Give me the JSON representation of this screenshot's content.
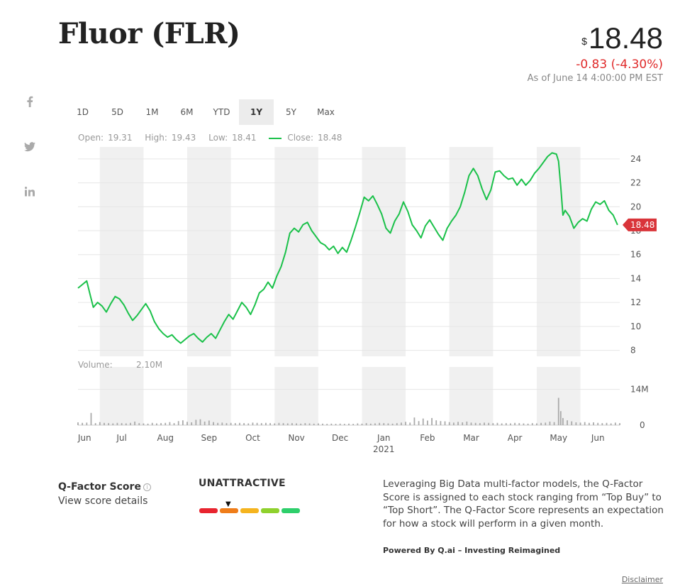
{
  "header": {
    "title": "Fluor (FLR)",
    "currency_symbol": "$",
    "price": "18.48",
    "change": "-0.83 (-4.30%)",
    "as_of": "As of June 14 4:00:00 PM EST"
  },
  "social": [
    {
      "name": "facebook-icon",
      "glyph": "f"
    },
    {
      "name": "twitter-icon",
      "glyph": "🐦"
    },
    {
      "name": "linkedin-icon",
      "glyph": "in"
    }
  ],
  "range_buttons": [
    "1D",
    "5D",
    "1M",
    "6M",
    "YTD",
    "1Y",
    "5Y",
    "Max"
  ],
  "active_range": "1Y",
  "ohlc": {
    "open_label": "Open:",
    "open": "19.31",
    "high_label": "High:",
    "high": "19.43",
    "low_label": "Low:",
    "low": "18.41",
    "close_label": "Close:",
    "close": "18.48"
  },
  "volume_label": "Volume:",
  "volume_value": "2.10M",
  "current_price_badge": "18.48",
  "colors": {
    "line": "#1bc14a",
    "badge": "#d9343a",
    "band": "#f0f0f0",
    "negative": "#e02a2a"
  },
  "chart_data": {
    "type": "line",
    "x_tick_labels": [
      "Jun",
      "Jul",
      "Aug",
      "Sep",
      "Oct",
      "Nov",
      "Dec",
      "Jan",
      "Feb",
      "Mar",
      "Apr",
      "May",
      "Jun"
    ],
    "x_sub_label": "2021",
    "y_ticks": [
      8,
      10,
      12,
      14,
      16,
      18,
      20,
      22,
      24
    ],
    "ylim": [
      7.5,
      25
    ],
    "series": [
      {
        "values": [
          [
            0.0,
            13.2
          ],
          [
            0.1,
            13.5
          ],
          [
            0.2,
            13.8
          ],
          [
            0.28,
            12.6
          ],
          [
            0.35,
            11.6
          ],
          [
            0.45,
            12.0
          ],
          [
            0.55,
            11.7
          ],
          [
            0.65,
            11.2
          ],
          [
            0.75,
            11.9
          ],
          [
            0.85,
            12.5
          ],
          [
            0.95,
            12.3
          ],
          [
            1.05,
            11.8
          ],
          [
            1.15,
            11.1
          ],
          [
            1.25,
            10.5
          ],
          [
            1.35,
            10.9
          ],
          [
            1.45,
            11.4
          ],
          [
            1.55,
            11.9
          ],
          [
            1.65,
            11.3
          ],
          [
            1.75,
            10.4
          ],
          [
            1.85,
            9.8
          ],
          [
            1.95,
            9.4
          ],
          [
            2.05,
            9.1
          ],
          [
            2.15,
            9.3
          ],
          [
            2.25,
            8.9
          ],
          [
            2.35,
            8.6
          ],
          [
            2.45,
            8.9
          ],
          [
            2.55,
            9.2
          ],
          [
            2.65,
            9.4
          ],
          [
            2.75,
            9.0
          ],
          [
            2.85,
            8.7
          ],
          [
            2.95,
            9.1
          ],
          [
            3.05,
            9.4
          ],
          [
            3.15,
            9.0
          ],
          [
            3.25,
            9.7
          ],
          [
            3.35,
            10.4
          ],
          [
            3.45,
            11.0
          ],
          [
            3.55,
            10.6
          ],
          [
            3.65,
            11.3
          ],
          [
            3.75,
            12.0
          ],
          [
            3.85,
            11.6
          ],
          [
            3.95,
            11.0
          ],
          [
            4.05,
            11.8
          ],
          [
            4.15,
            12.8
          ],
          [
            4.25,
            13.1
          ],
          [
            4.35,
            13.7
          ],
          [
            4.45,
            13.2
          ],
          [
            4.55,
            14.2
          ],
          [
            4.65,
            15.0
          ],
          [
            4.75,
            16.2
          ],
          [
            4.85,
            17.8
          ],
          [
            4.95,
            18.2
          ],
          [
            5.05,
            17.9
          ],
          [
            5.15,
            18.5
          ],
          [
            5.25,
            18.7
          ],
          [
            5.35,
            18.0
          ],
          [
            5.45,
            17.5
          ],
          [
            5.55,
            17.0
          ],
          [
            5.65,
            16.8
          ],
          [
            5.75,
            16.4
          ],
          [
            5.85,
            16.7
          ],
          [
            5.95,
            16.1
          ],
          [
            6.05,
            16.6
          ],
          [
            6.15,
            16.2
          ],
          [
            6.25,
            17.2
          ],
          [
            6.35,
            18.3
          ],
          [
            6.45,
            19.5
          ],
          [
            6.55,
            20.8
          ],
          [
            6.65,
            20.5
          ],
          [
            6.75,
            20.9
          ],
          [
            6.85,
            20.2
          ],
          [
            6.95,
            19.4
          ],
          [
            7.05,
            18.2
          ],
          [
            7.15,
            17.8
          ],
          [
            7.25,
            18.8
          ],
          [
            7.35,
            19.4
          ],
          [
            7.45,
            20.4
          ],
          [
            7.55,
            19.6
          ],
          [
            7.65,
            18.5
          ],
          [
            7.75,
            18.0
          ],
          [
            7.85,
            17.4
          ],
          [
            7.95,
            18.4
          ],
          [
            8.05,
            18.9
          ],
          [
            8.15,
            18.3
          ],
          [
            8.25,
            17.7
          ],
          [
            8.35,
            17.2
          ],
          [
            8.45,
            18.2
          ],
          [
            8.55,
            18.8
          ],
          [
            8.65,
            19.3
          ],
          [
            8.75,
            20.0
          ],
          [
            8.85,
            21.2
          ],
          [
            8.95,
            22.6
          ],
          [
            9.05,
            23.2
          ],
          [
            9.15,
            22.6
          ],
          [
            9.25,
            21.5
          ],
          [
            9.35,
            20.6
          ],
          [
            9.45,
            21.4
          ],
          [
            9.55,
            22.9
          ],
          [
            9.65,
            23.0
          ],
          [
            9.75,
            22.6
          ],
          [
            9.85,
            22.3
          ],
          [
            9.95,
            22.4
          ],
          [
            10.05,
            21.8
          ],
          [
            10.15,
            22.3
          ],
          [
            10.25,
            21.8
          ],
          [
            10.35,
            22.2
          ],
          [
            10.45,
            22.8
          ],
          [
            10.55,
            23.2
          ],
          [
            10.65,
            23.7
          ],
          [
            10.75,
            24.2
          ],
          [
            10.85,
            24.5
          ],
          [
            10.95,
            24.4
          ],
          [
            11.0,
            23.8
          ],
          [
            11.05,
            21.7
          ],
          [
            11.1,
            19.3
          ],
          [
            11.15,
            19.7
          ],
          [
            11.25,
            19.2
          ],
          [
            11.35,
            18.2
          ],
          [
            11.45,
            18.7
          ],
          [
            11.55,
            19.0
          ],
          [
            11.65,
            18.8
          ],
          [
            11.75,
            19.8
          ],
          [
            11.85,
            20.4
          ],
          [
            11.95,
            20.2
          ],
          [
            12.05,
            20.5
          ],
          [
            12.15,
            19.7
          ],
          [
            12.25,
            19.3
          ],
          [
            12.35,
            18.48
          ]
        ]
      }
    ],
    "volume_ticks": [
      "14M",
      "0"
    ],
    "volume_ylim": [
      0,
      20
    ],
    "volume_values": [
      [
        0.0,
        1.1
      ],
      [
        0.1,
        0.9
      ],
      [
        0.2,
        1.0
      ],
      [
        0.3,
        4.8
      ],
      [
        0.4,
        0.8
      ],
      [
        0.5,
        1.2
      ],
      [
        0.6,
        0.9
      ],
      [
        0.7,
        0.8
      ],
      [
        0.8,
        0.7
      ],
      [
        0.9,
        0.9
      ],
      [
        1.0,
        0.8
      ],
      [
        1.1,
        0.7
      ],
      [
        1.2,
        0.9
      ],
      [
        1.3,
        1.4
      ],
      [
        1.4,
        0.8
      ],
      [
        1.5,
        0.7
      ],
      [
        1.6,
        0.6
      ],
      [
        1.7,
        0.9
      ],
      [
        1.8,
        0.7
      ],
      [
        1.9,
        0.8
      ],
      [
        2.0,
        0.9
      ],
      [
        2.1,
        1.2
      ],
      [
        2.2,
        0.8
      ],
      [
        2.3,
        1.6
      ],
      [
        2.4,
        1.9
      ],
      [
        2.5,
        1.3
      ],
      [
        2.6,
        1.1
      ],
      [
        2.7,
        2.1
      ],
      [
        2.8,
        2.3
      ],
      [
        2.9,
        1.4
      ],
      [
        3.0,
        1.8
      ],
      [
        3.1,
        1.2
      ],
      [
        3.2,
        0.9
      ],
      [
        3.3,
        1.0
      ],
      [
        3.4,
        0.8
      ],
      [
        3.5,
        0.9
      ],
      [
        3.6,
        0.8
      ],
      [
        3.7,
        0.9
      ],
      [
        3.8,
        0.8
      ],
      [
        3.9,
        0.7
      ],
      [
        4.0,
        1.0
      ],
      [
        4.1,
        0.9
      ],
      [
        4.2,
        0.8
      ],
      [
        4.3,
        0.9
      ],
      [
        4.4,
        0.8
      ],
      [
        4.5,
        0.7
      ],
      [
        4.6,
        0.9
      ],
      [
        4.7,
        0.8
      ],
      [
        4.8,
        0.7
      ],
      [
        4.9,
        0.8
      ],
      [
        5.0,
        0.7
      ],
      [
        5.1,
        0.6
      ],
      [
        5.2,
        0.8
      ],
      [
        5.3,
        0.7
      ],
      [
        5.4,
        0.6
      ],
      [
        5.5,
        0.7
      ],
      [
        5.6,
        0.6
      ],
      [
        5.7,
        0.5
      ],
      [
        5.8,
        0.6
      ],
      [
        5.9,
        0.5
      ],
      [
        6.0,
        0.6
      ],
      [
        6.1,
        0.5
      ],
      [
        6.2,
        0.6
      ],
      [
        6.3,
        0.5
      ],
      [
        6.4,
        0.7
      ],
      [
        6.5,
        0.6
      ],
      [
        6.6,
        0.8
      ],
      [
        6.7,
        0.6
      ],
      [
        6.8,
        0.7
      ],
      [
        6.9,
        0.9
      ],
      [
        7.0,
        0.8
      ],
      [
        7.1,
        0.7
      ],
      [
        7.2,
        0.6
      ],
      [
        7.3,
        0.8
      ],
      [
        7.4,
        1.0
      ],
      [
        7.5,
        1.3
      ],
      [
        7.6,
        1.0
      ],
      [
        7.7,
        3.0
      ],
      [
        7.8,
        1.6
      ],
      [
        7.9,
        2.6
      ],
      [
        8.0,
        1.8
      ],
      [
        8.1,
        2.8
      ],
      [
        8.2,
        1.9
      ],
      [
        8.3,
        1.6
      ],
      [
        8.4,
        1.5
      ],
      [
        8.5,
        1.2
      ],
      [
        8.6,
        1.0
      ],
      [
        8.7,
        1.3
      ],
      [
        8.8,
        1.1
      ],
      [
        8.9,
        1.4
      ],
      [
        9.0,
        1.0
      ],
      [
        9.1,
        0.9
      ],
      [
        9.2,
        0.8
      ],
      [
        9.3,
        1.0
      ],
      [
        9.4,
        0.9
      ],
      [
        9.5,
        0.8
      ],
      [
        9.6,
        0.9
      ],
      [
        9.7,
        0.7
      ],
      [
        9.8,
        0.8
      ],
      [
        9.9,
        0.7
      ],
      [
        10.0,
        0.9
      ],
      [
        10.1,
        0.8
      ],
      [
        10.2,
        0.7
      ],
      [
        10.3,
        0.6
      ],
      [
        10.4,
        0.8
      ],
      [
        10.5,
        0.7
      ],
      [
        10.6,
        0.9
      ],
      [
        10.7,
        1.0
      ],
      [
        10.8,
        1.4
      ],
      [
        10.9,
        1.2
      ],
      [
        11.0,
        10.7
      ],
      [
        11.05,
        5.5
      ],
      [
        11.1,
        2.8
      ],
      [
        11.2,
        1.9
      ],
      [
        11.3,
        1.5
      ],
      [
        11.4,
        1.1
      ],
      [
        11.5,
        1.0
      ],
      [
        11.6,
        1.2
      ],
      [
        11.7,
        0.9
      ],
      [
        11.8,
        1.1
      ],
      [
        11.9,
        0.9
      ],
      [
        12.0,
        0.8
      ],
      [
        12.1,
        0.9
      ],
      [
        12.2,
        0.7
      ],
      [
        12.3,
        1.0
      ],
      [
        12.4,
        0.8
      ]
    ]
  },
  "qfactor": {
    "title": "Q-Factor Score",
    "link": "View score details",
    "rating": "UNATTRACTIVE",
    "segment_colors": [
      "#e8242f",
      "#ef7d1a",
      "#f5b41f",
      "#8fd12d",
      "#2ecf6b"
    ],
    "selected_segment": 1,
    "description": "Leveraging Big Data multi-factor models, the Q-Factor Score is assigned to each stock ranging from “Top Buy” to “Top Short”. The Q-Factor Score represents an expectation for how a stock will perform in a given month.",
    "powered_by": "Powered By Q.ai – Investing Reimagined",
    "disclaimer": "Disclaimer"
  }
}
